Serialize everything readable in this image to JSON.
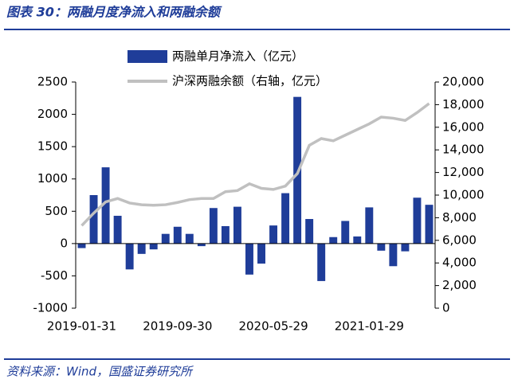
{
  "chart_data": {
    "type": "bar",
    "title": "图表 30：两融月度净流入和两融余额",
    "source": "资料来源：Wind，国盛证券研究所",
    "categories": [
      "2019-01-31",
      null,
      null,
      null,
      null,
      null,
      null,
      null,
      "2019-09-30",
      null,
      null,
      null,
      null,
      null,
      null,
      null,
      "2020-05-29",
      null,
      null,
      null,
      null,
      null,
      null,
      null,
      "2021-01-29",
      null,
      null,
      null,
      null,
      null
    ],
    "series": [
      {
        "name": "两融单月净流入（亿元）",
        "type": "bar",
        "color": "#1f3d99",
        "values": [
          -70,
          750,
          1180,
          430,
          -400,
          -160,
          -90,
          150,
          260,
          150,
          -40,
          550,
          270,
          570,
          -480,
          -310,
          280,
          780,
          2270,
          380,
          -580,
          100,
          350,
          110,
          560,
          -110,
          -350,
          -120,
          710,
          600
        ]
      },
      {
        "name": "沪深两融余额（右轴，亿元）",
        "type": "line",
        "axis": "y2",
        "color": "#c0c0c0",
        "values": [
          7300,
          8400,
          9400,
          9700,
          9300,
          9150,
          9100,
          9150,
          9350,
          9600,
          9700,
          9700,
          10300,
          10400,
          11000,
          10600,
          10500,
          10800,
          11900,
          14400,
          15000,
          14800,
          15300,
          15800,
          16300,
          16900,
          16800,
          16600,
          17300,
          18100
        ]
      }
    ],
    "ylim": [
      -1000,
      2500
    ],
    "yticks": [
      -1000,
      -500,
      0,
      500,
      1000,
      1500,
      2000,
      2500
    ],
    "y2lim": [
      0,
      20000
    ],
    "y2ticks": [
      0,
      {
        "value": 2000,
        "label": "2,000"
      },
      {
        "value": 4000,
        "label": "4,000"
      },
      {
        "value": 6000,
        "label": "6,000"
      },
      {
        "value": 8000,
        "label": "8,000"
      },
      {
        "value": 10000,
        "label": "10,000"
      },
      {
        "value": 12000,
        "label": "12,000"
      },
      {
        "value": 14000,
        "label": "14,000"
      },
      {
        "value": 16000,
        "label": "16,000"
      },
      {
        "value": 18000,
        "label": "18,000"
      },
      {
        "value": 20000,
        "label": "20,000"
      }
    ],
    "legend": "top"
  }
}
